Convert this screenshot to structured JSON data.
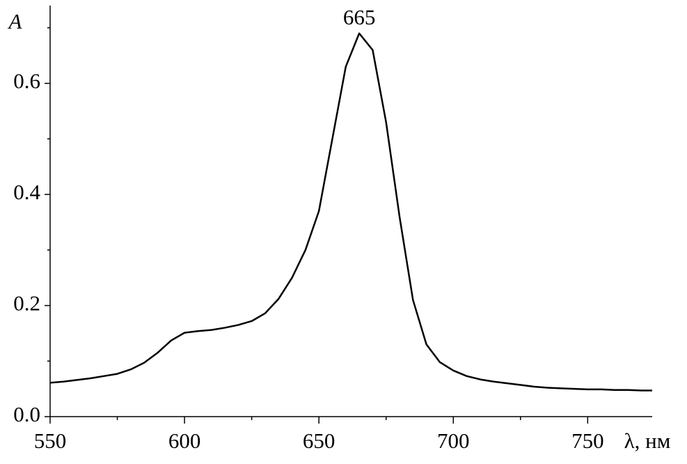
{
  "chart_data": {
    "type": "line",
    "x_label": "λ, нм",
    "y_label": "A",
    "annotations": [
      {
        "text": "665",
        "x": 665
      }
    ],
    "x": [
      550,
      555,
      560,
      565,
      570,
      575,
      580,
      585,
      590,
      595,
      600,
      605,
      610,
      615,
      620,
      625,
      630,
      635,
      640,
      645,
      650,
      655,
      660,
      665,
      670,
      675,
      680,
      685,
      690,
      695,
      700,
      705,
      710,
      715,
      720,
      725,
      730,
      735,
      740,
      745,
      750,
      755,
      760,
      765,
      770,
      774
    ],
    "series": [
      {
        "color": "#000000",
        "values": [
          0.061,
          0.063,
          0.066,
          0.069,
          0.073,
          0.077,
          0.085,
          0.097,
          0.115,
          0.137,
          0.151,
          0.154,
          0.156,
          0.16,
          0.165,
          0.172,
          0.186,
          0.212,
          0.25,
          0.3,
          0.37,
          0.5,
          0.63,
          0.69,
          0.66,
          0.53,
          0.36,
          0.21,
          0.13,
          0.098,
          0.083,
          0.073,
          0.067,
          0.063,
          0.06,
          0.057,
          0.054,
          0.052,
          0.051,
          0.05,
          0.049,
          0.049,
          0.048,
          0.048,
          0.047,
          0.047
        ]
      }
    ],
    "xlim": [
      550,
      774
    ],
    "ylim": [
      0,
      0.74
    ],
    "xticks": [
      550,
      600,
      650,
      700,
      750
    ],
    "yticks": [
      {
        "value": 0,
        "label": "0.0"
      },
      0.2,
      0.4,
      0.6
    ],
    "xminorticks": [
      575,
      625,
      675,
      725
    ],
    "yminorticks": [
      0.1,
      0.3,
      0.5,
      0.7
    ]
  }
}
